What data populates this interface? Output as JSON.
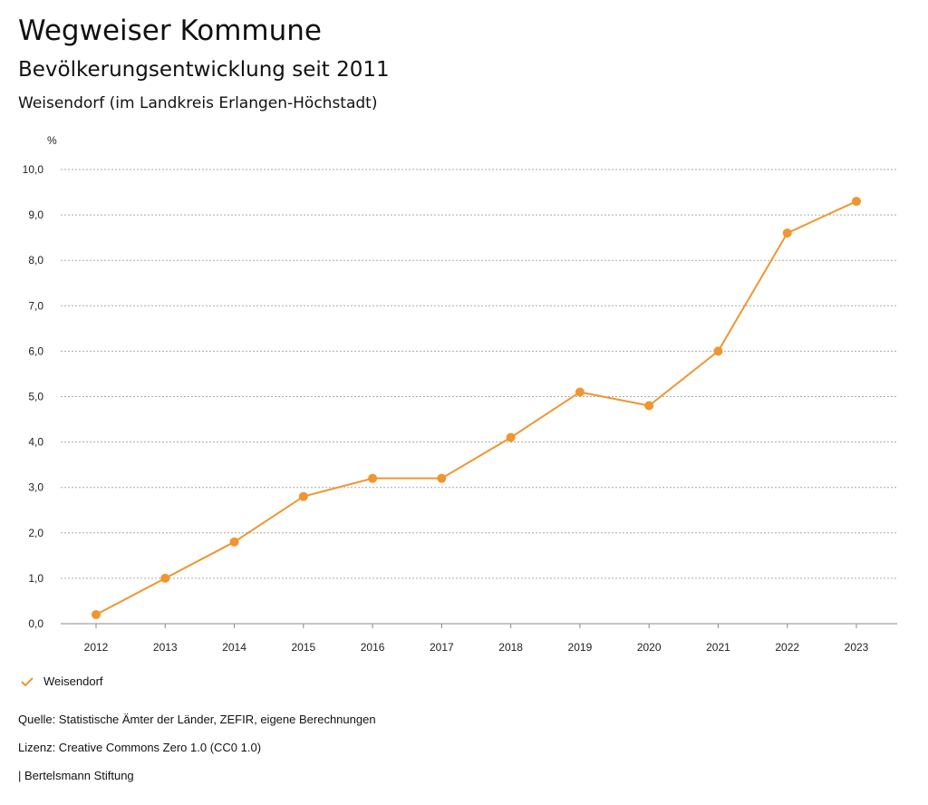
{
  "header": {
    "title": "Wegweiser Kommune",
    "subtitle": "Bevölkerungsentwicklung seit 2011",
    "region": "Weisendorf (im Landkreis Erlangen-Höchstadt)"
  },
  "colors": {
    "series": "#f0952f",
    "grid": "#aaaaaa",
    "axis": "#888888"
  },
  "footer": {
    "source": "Quelle: Statistische Ämter der Länder, ZEFIR, eigene Berechnungen",
    "license": "Lizenz: Creative Commons Zero 1.0 (CC0 1.0)",
    "publisher": "| Bertelsmann Stiftung"
  },
  "chart_data": {
    "type": "line",
    "title": "Bevölkerungsentwicklung seit 2011",
    "ylabel": "%",
    "xlabel": "",
    "ylim": [
      0,
      10
    ],
    "yticks": [
      "0,0",
      "1,0",
      "2,0",
      "3,0",
      "4,0",
      "5,0",
      "6,0",
      "7,0",
      "8,0",
      "9,0",
      "10,0"
    ],
    "categories": [
      "2012",
      "2013",
      "2014",
      "2015",
      "2016",
      "2017",
      "2018",
      "2019",
      "2020",
      "2021",
      "2022",
      "2023"
    ],
    "series": [
      {
        "name": "Weisendorf",
        "values": [
          0.2,
          1.0,
          1.8,
          2.8,
          3.2,
          3.2,
          4.1,
          5.1,
          4.8,
          6.0,
          8.6,
          9.3
        ]
      }
    ],
    "grid": true,
    "legend": "bottom-left"
  }
}
